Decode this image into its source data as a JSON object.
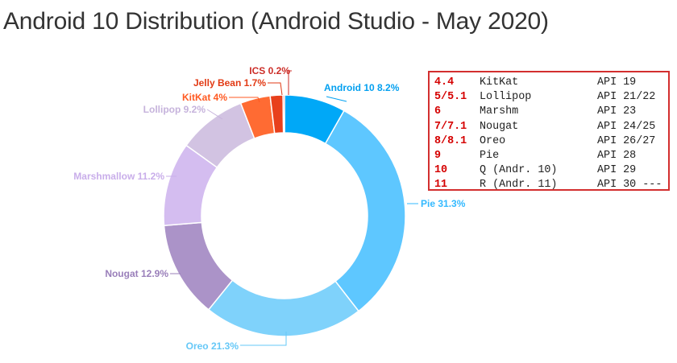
{
  "title": "Android 10 Distribution (Android Studio - May 2020)",
  "chart_data": {
    "type": "pie",
    "donut": true,
    "title": "Android 10 Distribution (Android Studio - May 2020)",
    "series": [
      {
        "name": "Android 10",
        "value": 8.2,
        "label": "Android 10 8.2%",
        "color": "#00a8f7"
      },
      {
        "name": "Pie",
        "value": 31.3,
        "label": "Pie 31.3%",
        "color": "#5ec7ff"
      },
      {
        "name": "Oreo",
        "value": 21.3,
        "label": "Oreo 21.3%",
        "color": "#7fd2fb"
      },
      {
        "name": "Nougat",
        "value": 12.9,
        "label": "Nougat 12.9%",
        "color": "#ab93c8"
      },
      {
        "name": "Marshmallow",
        "value": 11.2,
        "label": "Marshmallow 11.2%",
        "color": "#d4bdf0"
      },
      {
        "name": "Lollipop",
        "value": 9.2,
        "label": "Lollipop 9.2%",
        "color": "#d2c3e2"
      },
      {
        "name": "KitKat",
        "value": 4,
        "label": "KitKat 4%",
        "color": "#ff6b33"
      },
      {
        "name": "Jelly Bean",
        "value": 1.7,
        "label": "Jelly Bean 1.7%",
        "color": "#e8401c"
      },
      {
        "name": "ICS",
        "value": 0.2,
        "label": "ICS 0.2%",
        "color": "#d62b26"
      }
    ]
  },
  "legend": {
    "rows": [
      {
        "version": "4.4",
        "name": "KitKat",
        "api": "API 19"
      },
      {
        "version": "5/5.1",
        "name": "Lollipop",
        "api": "API 21/22"
      },
      {
        "version": "6",
        "name": "Marshm",
        "api": "API 23"
      },
      {
        "version": "7/7.1",
        "name": "Nougat",
        "api": "API 24/25"
      },
      {
        "version": "8/8.1",
        "name": "Oreo",
        "api": "API 26/27"
      },
      {
        "version": "9",
        "name": "Pie",
        "api": "API 28"
      },
      {
        "version": "10",
        "name": "Q (Andr. 10)",
        "api": "API 29"
      },
      {
        "version": "11",
        "name": "R (Andr. 11)",
        "api": "API 30 ---"
      }
    ]
  }
}
